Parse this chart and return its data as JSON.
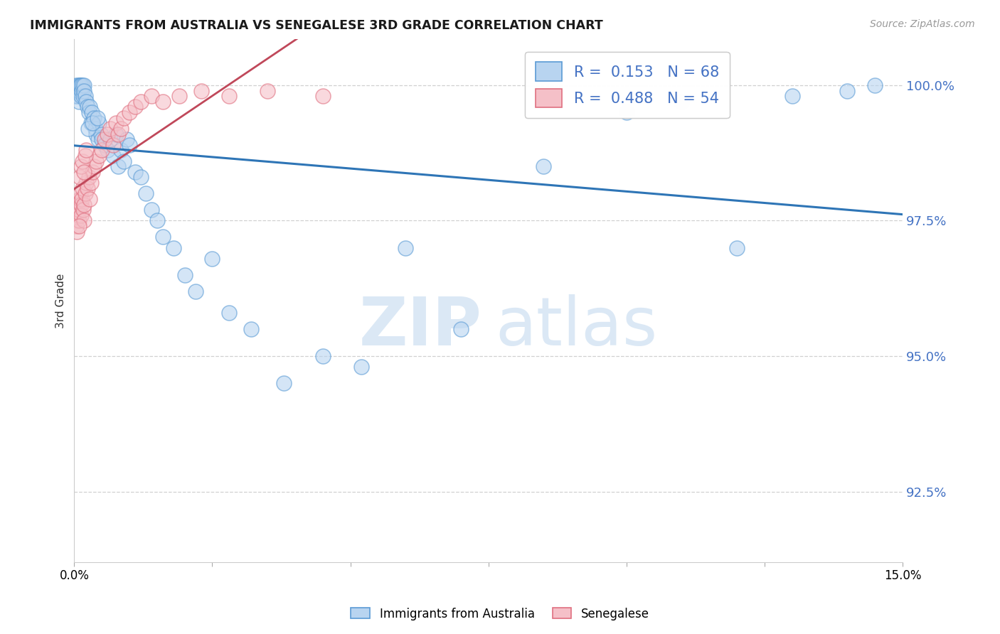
{
  "title": "IMMIGRANTS FROM AUSTRALIA VS SENEGALESE 3RD GRADE CORRELATION CHART",
  "source": "Source: ZipAtlas.com",
  "ylabel": "3rd Grade",
  "yticks": [
    92.5,
    95.0,
    97.5,
    100.0
  ],
  "ytick_labels": [
    "92.5%",
    "95.0%",
    "97.5%",
    "100.0%"
  ],
  "xmin": 0.0,
  "xmax": 15.0,
  "ymin": 91.2,
  "ymax": 100.85,
  "blue_R": 0.153,
  "blue_N": 68,
  "pink_R": 0.488,
  "pink_N": 54,
  "blue_face_color": "#B8D4F0",
  "pink_face_color": "#F5C0C8",
  "blue_edge_color": "#5B9BD5",
  "pink_edge_color": "#E07080",
  "blue_line_color": "#2E75B6",
  "pink_line_color": "#C0485A",
  "tick_label_color": "#4472C4",
  "legend_label_blue": "Immigrants from Australia",
  "legend_label_pink": "Senegalese",
  "blue_x": [
    0.02,
    0.03,
    0.04,
    0.05,
    0.06,
    0.07,
    0.08,
    0.09,
    0.1,
    0.11,
    0.12,
    0.13,
    0.14,
    0.15,
    0.16,
    0.17,
    0.18,
    0.2,
    0.22,
    0.24,
    0.26,
    0.28,
    0.3,
    0.32,
    0.35,
    0.38,
    0.4,
    0.43,
    0.45,
    0.48,
    0.5,
    0.55,
    0.6,
    0.65,
    0.7,
    0.75,
    0.8,
    0.85,
    0.9,
    0.95,
    1.0,
    1.1,
    1.2,
    1.3,
    1.4,
    1.5,
    1.6,
    1.8,
    2.0,
    2.2,
    2.5,
    2.8,
    3.2,
    3.8,
    4.5,
    5.2,
    6.0,
    7.0,
    8.5,
    10.0,
    11.0,
    12.0,
    13.0,
    14.0,
    14.5,
    0.25,
    0.33,
    0.42
  ],
  "blue_y": [
    99.8,
    99.9,
    100.0,
    99.9,
    99.8,
    100.0,
    99.7,
    99.9,
    100.0,
    100.0,
    99.8,
    100.0,
    99.9,
    100.0,
    99.8,
    100.0,
    99.9,
    99.8,
    99.7,
    99.6,
    99.5,
    99.6,
    99.3,
    99.5,
    99.4,
    99.2,
    99.1,
    99.0,
    99.3,
    99.1,
    99.0,
    98.9,
    98.8,
    99.0,
    98.7,
    99.1,
    98.5,
    98.8,
    98.6,
    99.0,
    98.9,
    98.4,
    98.3,
    98.0,
    97.7,
    97.5,
    97.2,
    97.0,
    96.5,
    96.2,
    96.8,
    95.8,
    95.5,
    94.5,
    95.0,
    94.8,
    97.0,
    95.5,
    98.5,
    99.5,
    99.7,
    97.0,
    99.8,
    99.9,
    100.0,
    99.2,
    99.3,
    99.4
  ],
  "pink_x": [
    0.01,
    0.02,
    0.03,
    0.04,
    0.05,
    0.06,
    0.07,
    0.08,
    0.09,
    0.1,
    0.11,
    0.12,
    0.13,
    0.14,
    0.15,
    0.16,
    0.17,
    0.18,
    0.2,
    0.22,
    0.24,
    0.26,
    0.28,
    0.3,
    0.33,
    0.36,
    0.4,
    0.45,
    0.5,
    0.55,
    0.6,
    0.65,
    0.7,
    0.75,
    0.8,
    0.85,
    0.9,
    1.0,
    1.1,
    1.2,
    1.4,
    1.6,
    1.9,
    2.3,
    2.8,
    3.5,
    4.5,
    0.08,
    0.1,
    0.12,
    0.15,
    0.18,
    0.2,
    0.22
  ],
  "pink_y": [
    97.8,
    97.5,
    97.6,
    97.4,
    97.3,
    97.8,
    97.6,
    97.5,
    97.7,
    97.9,
    98.0,
    97.8,
    97.6,
    97.9,
    98.1,
    97.7,
    97.5,
    97.8,
    98.0,
    98.2,
    98.1,
    98.3,
    97.9,
    98.2,
    98.4,
    98.5,
    98.6,
    98.7,
    98.8,
    99.0,
    99.1,
    99.2,
    98.9,
    99.3,
    99.1,
    99.2,
    99.4,
    99.5,
    99.6,
    99.7,
    99.8,
    99.7,
    99.8,
    99.9,
    99.8,
    99.9,
    99.8,
    97.4,
    98.3,
    98.5,
    98.6,
    98.4,
    98.7,
    98.8
  ]
}
